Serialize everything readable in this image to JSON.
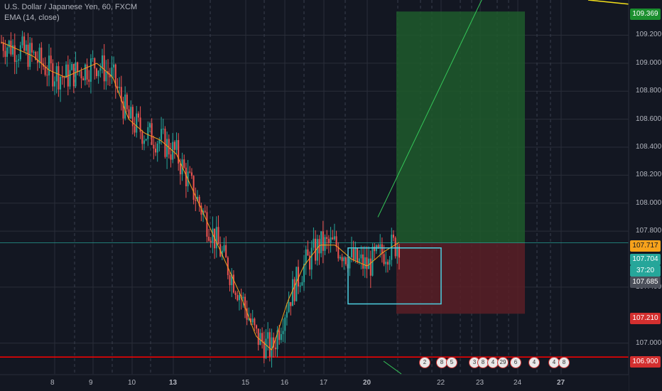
{
  "legend": {
    "symbol_line": "U.S. Dollar / Japanese Yen, 60, FXCM",
    "indicator": "EMA (14, close)"
  },
  "price_axis": {
    "ticks": [
      "109.200",
      "109.000",
      "108.800",
      "108.600",
      "108.400",
      "108.200",
      "108.000",
      "107.800",
      "107.400",
      "107.000"
    ],
    "labels": {
      "target": "109.369",
      "entry": "107.717",
      "last": "107.704",
      "countdown": "37:20",
      "crosshair": "107.685",
      "stop": "107.210",
      "support": "106.900"
    }
  },
  "time_axis": {
    "ticks": [
      "8",
      "9",
      "10",
      "13",
      "15",
      "16",
      "17",
      "20",
      "22",
      "23",
      "24",
      "27"
    ]
  },
  "colors": {
    "background": "#131722",
    "bull": "#26a69a",
    "bear": "#ef5350",
    "ema": "#f7a21b",
    "profit_zone": "#1e5a2b",
    "loss_zone": "#5a1e26",
    "support": "#ff0000",
    "box": "#4dd0e1"
  },
  "events": {
    "badges": [
      "2",
      "8",
      "5",
      "3",
      "8",
      "4",
      "29",
      "6",
      "4",
      "4",
      "8"
    ]
  },
  "chart_data": {
    "type": "candlestick",
    "title": "U.S. Dollar / Japanese Yen, 60, FXCM",
    "series": [
      {
        "name": "EMA (14, close)",
        "values": [
          109.15,
          109.1,
          109.05,
          108.95,
          108.9,
          108.95,
          109.0,
          108.9,
          108.6,
          108.5,
          108.45,
          108.35,
          108.1,
          107.85,
          107.6,
          107.35,
          107.05,
          106.95,
          107.3,
          107.55,
          107.7,
          107.7,
          107.6,
          107.55,
          107.65,
          107.72
        ]
      }
    ],
    "ylim": [
      106.8,
      109.45
    ],
    "key_levels": {
      "take_profit": 109.369,
      "entry": 107.717,
      "stop_loss": 107.21,
      "support": 106.9
    }
  }
}
